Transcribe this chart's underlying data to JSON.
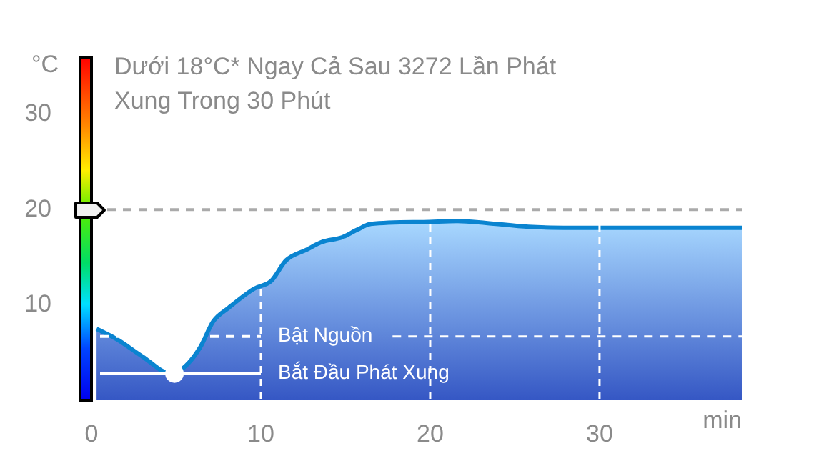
{
  "chart_data": {
    "type": "area",
    "title": "Dưới 18°C* Ngay Cả Sau 3272 Lần Phát Xung Trong 30 Phút",
    "xlabel": "min",
    "ylabel": "°C",
    "series": [
      {
        "color": "#0a84d0",
        "x": [
          0.3,
          1.5,
          3,
          4.7,
          5.5,
          6.4,
          7.2,
          8.1,
          9.6,
          10.6,
          11.5,
          12.7,
          13.6,
          14.8,
          15.7,
          16.5,
          19.6,
          21.6,
          23.3,
          25.8,
          28.3,
          38.4
        ],
        "values": [
          7.5,
          6.4,
          4.6,
          2.8,
          3.5,
          5.5,
          8.3,
          9.7,
          11.7,
          12.5,
          14.7,
          15.8,
          16.6,
          17.1,
          17.9,
          18.5,
          18.7,
          18.8,
          18.6,
          18.2,
          18.1,
          18.1
        ]
      },
      {
        "type": "scatter",
        "color": "#ffffff",
        "x": [
          4.9
        ],
        "values": [
          2.8
        ]
      }
    ],
    "xlim": [
      0,
      38.4
    ],
    "ylim": [
      0,
      36
    ],
    "xticks": [
      0,
      10,
      20,
      30
    ],
    "yticks": [
      10,
      20,
      30
    ],
    "grid": "x",
    "ref_lines": [
      {
        "axis": "y",
        "value": 20,
        "color": "#aaaaaa",
        "line_style": "dashed"
      },
      {
        "axis": "y",
        "value": 6.7,
        "label": "Bật Nguồn",
        "color": "#ffffff",
        "line_style": "dashed"
      },
      {
        "axis": "y",
        "value": 2.8,
        "label": "Bắt Đầu Phát Xung",
        "color": "#ffffff",
        "line_style": "solid"
      }
    ]
  }
}
